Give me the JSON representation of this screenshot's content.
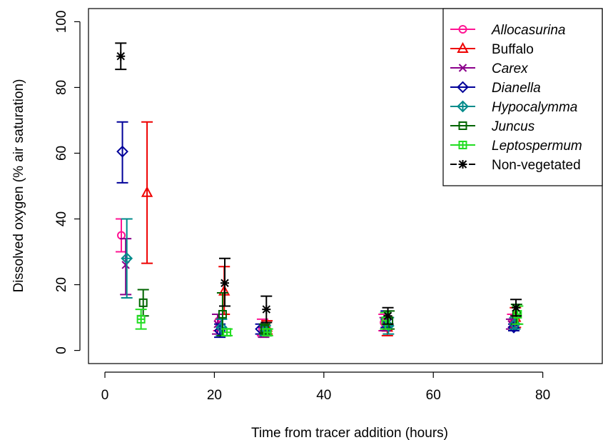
{
  "chart_data": {
    "type": "scatter",
    "xlabel": "Time from tracer addition (hours)",
    "ylabel": "Dissolved oxygen (% air saturation)",
    "xlim": [
      -3,
      91
    ],
    "ylim": [
      -4,
      104
    ],
    "xticks": [
      0,
      20,
      40,
      60,
      80
    ],
    "yticks": [
      0,
      20,
      40,
      60,
      80,
      100
    ],
    "legend_position": "top-right",
    "series": [
      {
        "name": "Allocasurina",
        "italic": true,
        "color": "#ff1493",
        "marker": "circle",
        "points": [
          {
            "x": 3.0,
            "y": 35.0,
            "lo": 30.0,
            "hi": 40.0
          },
          {
            "x": 20.8,
            "y": 9.0,
            "lo": 6.0,
            "hi": 11.0
          },
          {
            "x": 28.8,
            "y": 6.5,
            "lo": 4.5,
            "hi": 9.5
          },
          {
            "x": 51.0,
            "y": 8.5,
            "lo": 6.0,
            "hi": 11.0
          },
          {
            "x": 74.5,
            "y": 9.0,
            "lo": 6.5,
            "hi": 11.0
          }
        ]
      },
      {
        "name": "Buffalo",
        "italic": false,
        "color": "#ee0000",
        "marker": "triangle",
        "points": [
          {
            "x": 7.7,
            "y": 48.0,
            "lo": 26.5,
            "hi": 69.5
          },
          {
            "x": 21.8,
            "y": 18.0,
            "lo": 11.0,
            "hi": 25.5
          },
          {
            "x": 29.6,
            "y": 7.0,
            "lo": 5.0,
            "hi": 9.0
          },
          {
            "x": 51.6,
            "y": 7.0,
            "lo": 4.5,
            "hi": 10.0
          },
          {
            "x": 75.0,
            "y": 10.0,
            "lo": 7.0,
            "hi": 13.0
          }
        ]
      },
      {
        "name": "Carex",
        "italic": true,
        "color": "#8b008b",
        "marker": "x",
        "points": [
          {
            "x": 3.8,
            "y": 26.0,
            "lo": 17.0,
            "hi": 34.0
          },
          {
            "x": 20.6,
            "y": 8.0,
            "lo": 5.0,
            "hi": 11.0
          },
          {
            "x": 29.0,
            "y": 5.0,
            "lo": 4.0,
            "hi": 7.0
          },
          {
            "x": 51.2,
            "y": 8.0,
            "lo": 6.0,
            "hi": 10.0
          },
          {
            "x": 74.3,
            "y": 8.0,
            "lo": 6.5,
            "hi": 9.5
          }
        ]
      },
      {
        "name": "Dianella",
        "italic": true,
        "color": "#000099",
        "marker": "diamond",
        "points": [
          {
            "x": 3.2,
            "y": 60.5,
            "lo": 51.0,
            "hi": 69.5
          },
          {
            "x": 21.0,
            "y": 6.0,
            "lo": 4.0,
            "hi": 8.0
          },
          {
            "x": 28.5,
            "y": 6.5,
            "lo": 5.0,
            "hi": 8.0
          },
          {
            "x": 51.4,
            "y": 9.5,
            "lo": 7.0,
            "hi": 12.0
          },
          {
            "x": 74.7,
            "y": 7.0,
            "lo": 6.0,
            "hi": 8.0
          }
        ]
      },
      {
        "name": "Hypocalymma",
        "italic": true,
        "color": "#008b8b",
        "marker": "diamond-plus",
        "points": [
          {
            "x": 4.0,
            "y": 28.0,
            "lo": 16.0,
            "hi": 40.0
          },
          {
            "x": 21.3,
            "y": 7.0,
            "lo": 4.5,
            "hi": 9.5
          },
          {
            "x": 29.3,
            "y": 6.0,
            "lo": 4.5,
            "hi": 7.5
          },
          {
            "x": 51.8,
            "y": 7.5,
            "lo": 5.0,
            "hi": 10.0
          },
          {
            "x": 74.9,
            "y": 8.0,
            "lo": 6.5,
            "hi": 10.0
          }
        ]
      },
      {
        "name": "Juncus",
        "italic": true,
        "color": "#006400",
        "marker": "square",
        "points": [
          {
            "x": 7.0,
            "y": 14.5,
            "lo": 10.5,
            "hi": 18.5
          },
          {
            "x": 21.5,
            "y": 11.0,
            "lo": 4.5,
            "hi": 17.5
          },
          {
            "x": 29.2,
            "y": 6.5,
            "lo": 5.0,
            "hi": 8.0
          },
          {
            "x": 51.9,
            "y": 9.0,
            "lo": 6.5,
            "hi": 12.0
          },
          {
            "x": 75.2,
            "y": 11.0,
            "lo": 8.0,
            "hi": 14.0
          }
        ]
      },
      {
        "name": "Leptospermum",
        "italic": true,
        "color": "#22dd22",
        "marker": "square-plus",
        "points": [
          {
            "x": 6.6,
            "y": 9.5,
            "lo": 6.5,
            "hi": 12.5
          },
          {
            "x": 22.3,
            "y": 5.5,
            "lo": 4.5,
            "hi": 6.5
          },
          {
            "x": 29.7,
            "y": 5.5,
            "lo": 4.5,
            "hi": 6.5
          },
          {
            "x": 51.3,
            "y": 9.0,
            "lo": 6.5,
            "hi": 11.5
          },
          {
            "x": 75.4,
            "y": 11.0,
            "lo": 8.0,
            "hi": 13.5
          }
        ]
      },
      {
        "name": "Non-vegetated",
        "italic": false,
        "color": "#000000",
        "marker": "asterisk",
        "points": [
          {
            "x": 2.9,
            "y": 89.5,
            "lo": 85.5,
            "hi": 93.5
          },
          {
            "x": 21.9,
            "y": 20.5,
            "lo": 13.5,
            "hi": 28.0
          },
          {
            "x": 29.5,
            "y": 12.5,
            "lo": 8.5,
            "hi": 16.5
          },
          {
            "x": 51.7,
            "y": 10.5,
            "lo": 8.0,
            "hi": 13.0
          },
          {
            "x": 75.1,
            "y": 13.0,
            "lo": 10.5,
            "hi": 15.5
          }
        ]
      }
    ]
  }
}
